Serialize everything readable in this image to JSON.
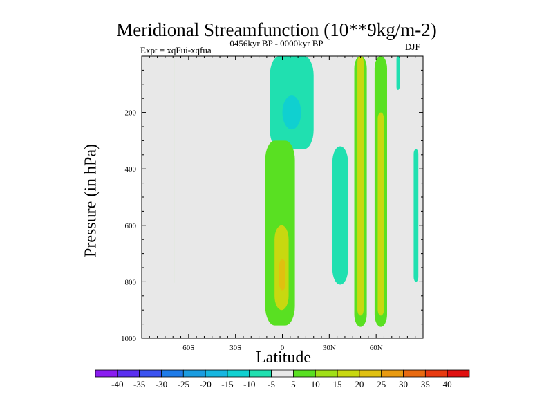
{
  "chart_data": {
    "type": "contour",
    "title": "Meridional Streamfunction (10**9kg/m-2)",
    "subtitle": "0456kyr BP - 0000kyr BP",
    "left_label": "Expt = xqFui-xqfua",
    "right_label": "DJF",
    "xlabel": "Latitude",
    "ylabel": "Pressure (in hPa)",
    "xlim": [
      -90,
      90
    ],
    "ylim": [
      1000,
      0
    ],
    "x_ticks": [
      {
        "value": -60,
        "label": "60S"
      },
      {
        "value": -30,
        "label": "30S"
      },
      {
        "value": 0,
        "label": "0"
      },
      {
        "value": 30,
        "label": "30N"
      },
      {
        "value": 60,
        "label": "60N"
      }
    ],
    "y_ticks": [
      {
        "value": 200,
        "label": "200"
      },
      {
        "value": 400,
        "label": "400"
      },
      {
        "value": 600,
        "label": "600"
      },
      {
        "value": 800,
        "label": "800"
      },
      {
        "value": 1000,
        "label": "1000"
      }
    ],
    "background_color": "#e8e8e8",
    "levels": [
      -40,
      -35,
      -30,
      -25,
      -20,
      -15,
      -10,
      -5,
      5,
      10,
      15,
      20,
      25,
      30,
      35,
      40
    ],
    "level_colors": [
      "#8a1cf0",
      "#5a2ff0",
      "#3a52f0",
      "#1e7be8",
      "#1a9ce0",
      "#16b6e0",
      "#10d0d0",
      "#20e0b0",
      "#e8e8e8",
      "#59e022",
      "#a0e018",
      "#c8d810",
      "#e0c010",
      "#e89a10",
      "#e86a10",
      "#e83a10",
      "#e01010"
    ],
    "features": [
      {
        "name": "thin-positive-line-60S",
        "x": [
          -69.6,
          -69.2
        ],
        "p": [
          5,
          805
        ],
        "level": 5
      },
      {
        "name": "negative-cell-upper-equator",
        "x": [
          -8,
          20
        ],
        "p": [
          0,
          330
        ],
        "level": -5
      },
      {
        "name": "negative-core-upper-equator",
        "x": [
          0,
          12
        ],
        "p": [
          140,
          260
        ],
        "level": -10
      },
      {
        "name": "positive-cell-equator",
        "x": [
          -11,
          8
        ],
        "p": [
          300,
          955
        ],
        "level": 5
      },
      {
        "name": "positive-core-equator",
        "x": [
          -5,
          4
        ],
        "p": [
          600,
          900
        ],
        "level": 15
      },
      {
        "name": "positive-max-equator",
        "x": [
          -2,
          2
        ],
        "p": [
          720,
          830
        ],
        "level": 20
      },
      {
        "name": "negative-cell-30N",
        "x": [
          32,
          42
        ],
        "p": [
          320,
          810
        ],
        "level": -5
      },
      {
        "name": "positive-band-45N",
        "x": [
          46,
          54
        ],
        "p": [
          0,
          960
        ],
        "level": 5
      },
      {
        "name": "positive-core-45N",
        "x": [
          48,
          52
        ],
        "p": [
          0,
          920
        ],
        "level": 15
      },
      {
        "name": "positive-band-62N",
        "x": [
          59,
          67
        ],
        "p": [
          0,
          960
        ],
        "level": 5
      },
      {
        "name": "positive-core-62N",
        "x": [
          61,
          65
        ],
        "p": [
          200,
          920
        ],
        "level": 15
      },
      {
        "name": "negative-strip-75N",
        "x": [
          73,
          75
        ],
        "p": [
          0,
          120
        ],
        "level": -5
      },
      {
        "name": "negative-sliver-85N",
        "x": [
          84,
          87
        ],
        "p": [
          330,
          800
        ],
        "level": -5
      }
    ],
    "colorbar_labels": [
      "-40",
      "-35",
      "-30",
      "-25",
      "-20",
      "-15",
      "-10",
      "-5",
      "5",
      "10",
      "15",
      "20",
      "25",
      "30",
      "35",
      "40"
    ]
  }
}
